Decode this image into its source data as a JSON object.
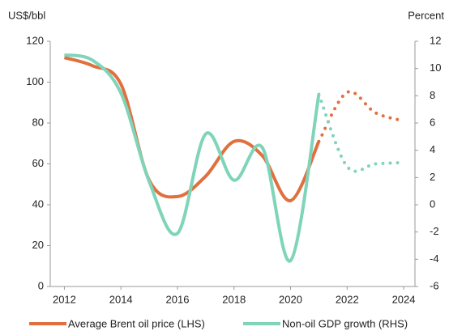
{
  "chart_data": {
    "type": "line",
    "y_label": "US$/bbl",
    "y2_label": "Percent",
    "x": [
      2012,
      2013,
      2014,
      2015,
      2016,
      2017,
      2018,
      2019,
      2020,
      2021,
      2022,
      2023,
      2024
    ],
    "projection_start": 2021,
    "series": [
      {
        "name": "Average Brent oil price (LHS)",
        "color": "#e0703e",
        "values": [
          112,
          108,
          99,
          52,
          44,
          54,
          71,
          64,
          42,
          71,
          95,
          85,
          81
        ]
      },
      {
        "name": "Non-oil GDP growth (RHS)",
        "color": "#7fd4b9",
        "axis": "y2",
        "values": [
          11,
          10.6,
          8.2,
          1.7,
          -2.1,
          5.2,
          1.8,
          4.2,
          -4.1,
          8.1,
          2.8,
          3,
          3.1
        ]
      }
    ],
    "xlim": [
      2011.5,
      2024.4
    ],
    "xticks": [
      2012,
      2014,
      2016,
      2018,
      2020,
      2022,
      2024
    ],
    "ylim": [
      0,
      120
    ],
    "yticks": [
      0,
      20,
      40,
      60,
      80,
      100,
      120
    ],
    "y2lim": [
      -6,
      12
    ],
    "y2ticks": [
      -6,
      -4,
      -2,
      0,
      2,
      4,
      6,
      8,
      10,
      12
    ],
    "legend": "bottom"
  }
}
